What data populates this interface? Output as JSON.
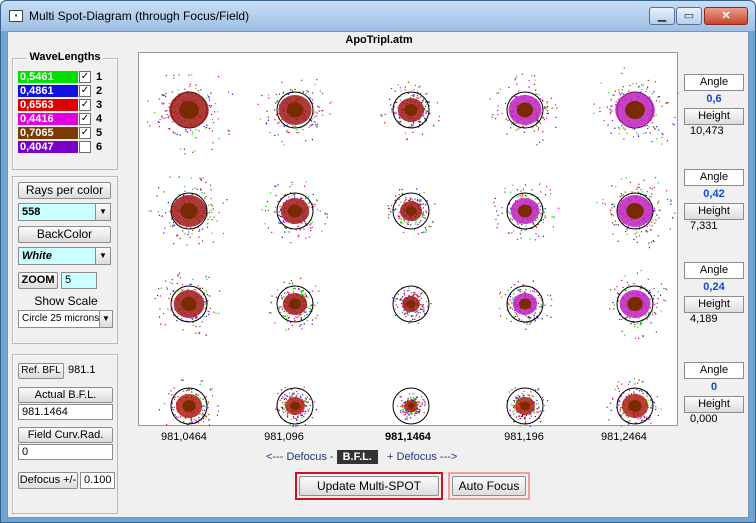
{
  "window": {
    "title": "Multi Spot-Diagram   (through Focus/Field)",
    "icon": "app-icon",
    "controls": [
      "minimize-icon",
      "maximize-icon",
      "close-icon"
    ]
  },
  "file_name": "ApoTripl.atm",
  "wavelengths": {
    "title": "WaveLengths",
    "items": [
      {
        "value": "0,5461",
        "color": "#00e000",
        "checked": "✓",
        "num": "1"
      },
      {
        "value": "0,4861",
        "color": "#1010e0",
        "checked": "✓",
        "num": "2"
      },
      {
        "value": "0,6563",
        "color": "#e00000",
        "checked": "✓",
        "num": "3"
      },
      {
        "value": "0,4416",
        "color": "#e000e0",
        "checked": "✓",
        "num": "4"
      },
      {
        "value": "0,7065",
        "color": "#7a3a00",
        "checked": "✓",
        "num": "5"
      },
      {
        "value": "0,4047",
        "color": "#7a00c8",
        "checked": "",
        "num": "6"
      }
    ]
  },
  "rays": {
    "label": "Rays per color",
    "value": "558",
    "backcolor_label": "BackColor",
    "backcolor_value": "White",
    "zoom_label": "ZOOM",
    "zoom_value": "5",
    "show_scale_label": "Show Scale",
    "scale_value": "Circle 25 microns"
  },
  "bfl": {
    "ref_button": "Ref.  BFL",
    "ref_value": "981.1",
    "actual_label": "Actual  B.F.L.",
    "actual_value": "981.1464",
    "curv_label": "Field Curv.Rad.",
    "curv_value": "0",
    "defocus_label": "Defocus +/-",
    "defocus_value": "0.100"
  },
  "columns": [
    "981,0464",
    "981,096",
    "981,1464",
    "981,196",
    "981,2464"
  ],
  "defocus_line": {
    "left": "<---  Defocus  -",
    "center": "B.F.L.",
    "right": "+ Defocus --->"
  },
  "fields": [
    {
      "angle_label": "Angle",
      "angle": "0,6",
      "height_label": "Height",
      "height": "10,473"
    },
    {
      "angle_label": "Angle",
      "angle": "0,42",
      "height_label": "Height",
      "height": "7,331"
    },
    {
      "angle_label": "Angle",
      "angle": "0,24",
      "height_label": "Height",
      "height": "4,189"
    },
    {
      "angle_label": "Angle",
      "angle": "0",
      "height_label": "Height",
      "height": "0,000"
    }
  ],
  "buttons": {
    "update": "Update  Multi-SPOT",
    "autofocus": "Auto Focus"
  }
}
